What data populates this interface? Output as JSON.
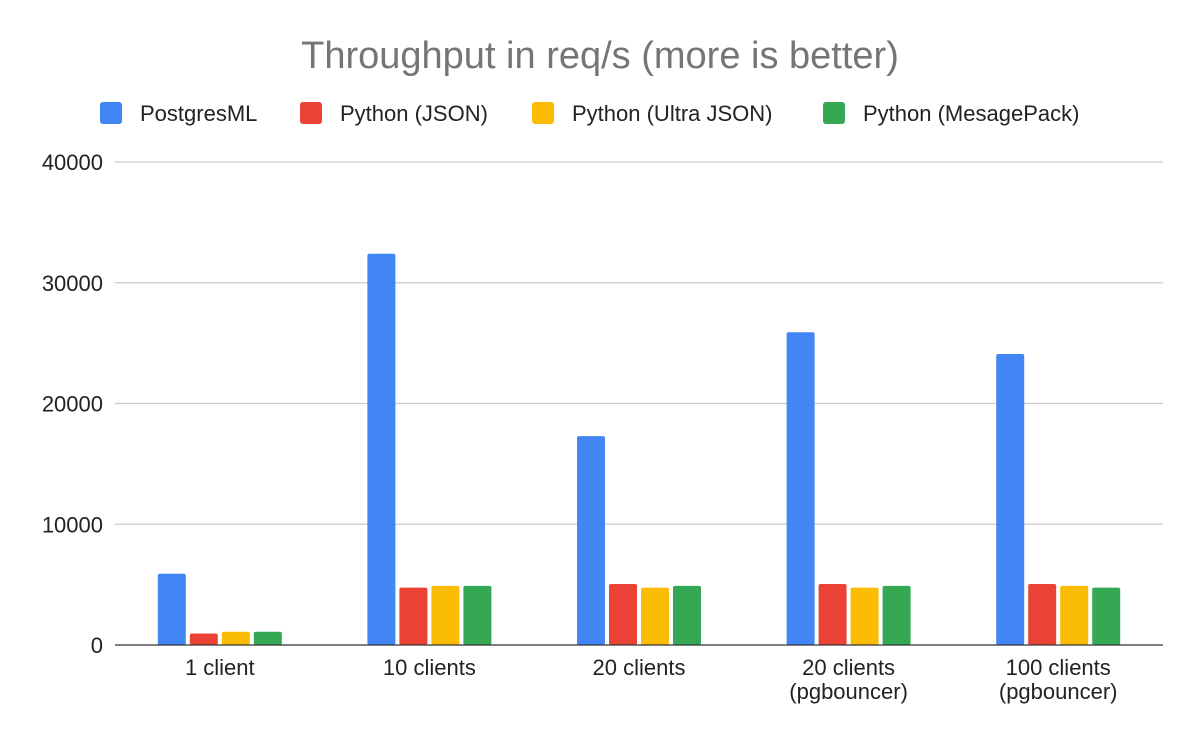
{
  "chart_data": {
    "type": "bar",
    "title": "Throughput in req/s (more is better)",
    "categories": [
      [
        "1 client"
      ],
      [
        "10 clients"
      ],
      [
        "20 clients"
      ],
      [
        "20 clients",
        "(pgbouncer)"
      ],
      [
        "100 clients",
        "(pgbouncer)"
      ]
    ],
    "series": [
      {
        "name": "PostgresML",
        "color": "#4285F4",
        "values": [
          5900,
          32400,
          17300,
          25900,
          24100
        ]
      },
      {
        "name": "Python (JSON)",
        "color": "#EA4335",
        "values": [
          950,
          4750,
          5050,
          5050,
          5050
        ]
      },
      {
        "name": "Python (Ultra JSON)",
        "color": "#FBBC04",
        "values": [
          1100,
          4900,
          4750,
          4750,
          4900
        ]
      },
      {
        "name": "Python (MesagePack)",
        "color": "#34A853",
        "values": [
          1100,
          4900,
          4900,
          4900,
          4750
        ]
      }
    ],
    "yticks": [
      "0",
      "10000",
      "20000",
      "30000",
      "40000"
    ],
    "ylim": [
      0,
      40000
    ],
    "grid": true,
    "legend_position": "top"
  }
}
